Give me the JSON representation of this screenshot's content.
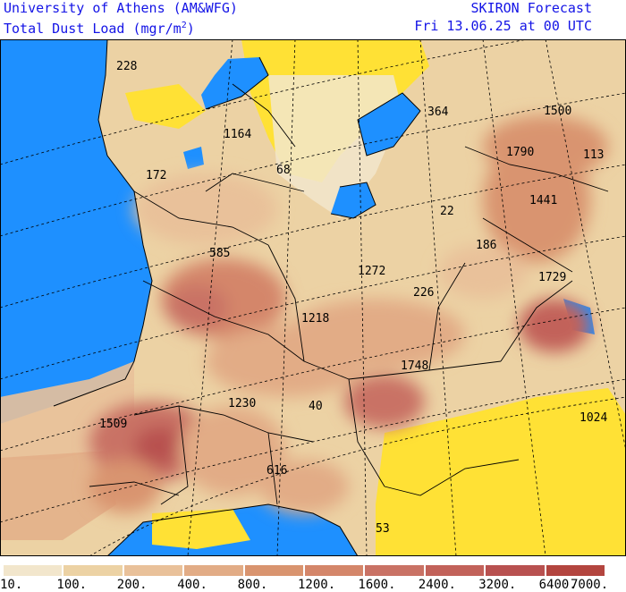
{
  "header": {
    "left_line1": "University of Athens (AM&WFG)",
    "left_line2": "Total Dust Load (mgr/m",
    "left_line2_sup": "2",
    "left_line2_end": ")",
    "right_line1": "SKIRON Forecast",
    "right_line2": "Fri 13.06.25 at 00 UTC"
  },
  "colors": {
    "sea": "#1e90ff",
    "no_dust": "#ffe135",
    "coast": "#000000",
    "header_text": "#1414e6"
  },
  "map_labels": [
    "228",
    "1164",
    "172",
    "68",
    "364",
    "1500",
    "1790",
    "113",
    "1441",
    "22",
    "186",
    "585",
    "1272",
    "226",
    "1729",
    "1218",
    "1748",
    "1230",
    "40",
    "1509",
    "1024",
    "616",
    "53"
  ],
  "colorbar": {
    "levels": [
      "10.",
      "100.",
      "200.",
      "400.",
      "800.",
      "1200.",
      "1600.",
      "2400.",
      "3200.",
      "6400.",
      "7000."
    ],
    "colors": [
      "#f2e6cc",
      "#ecd2a4",
      "#e9c19a",
      "#e2ac86",
      "#d9946f",
      "#d4866a",
      "#c97265",
      "#c2625a",
      "#b85150",
      "#b3453f"
    ]
  }
}
